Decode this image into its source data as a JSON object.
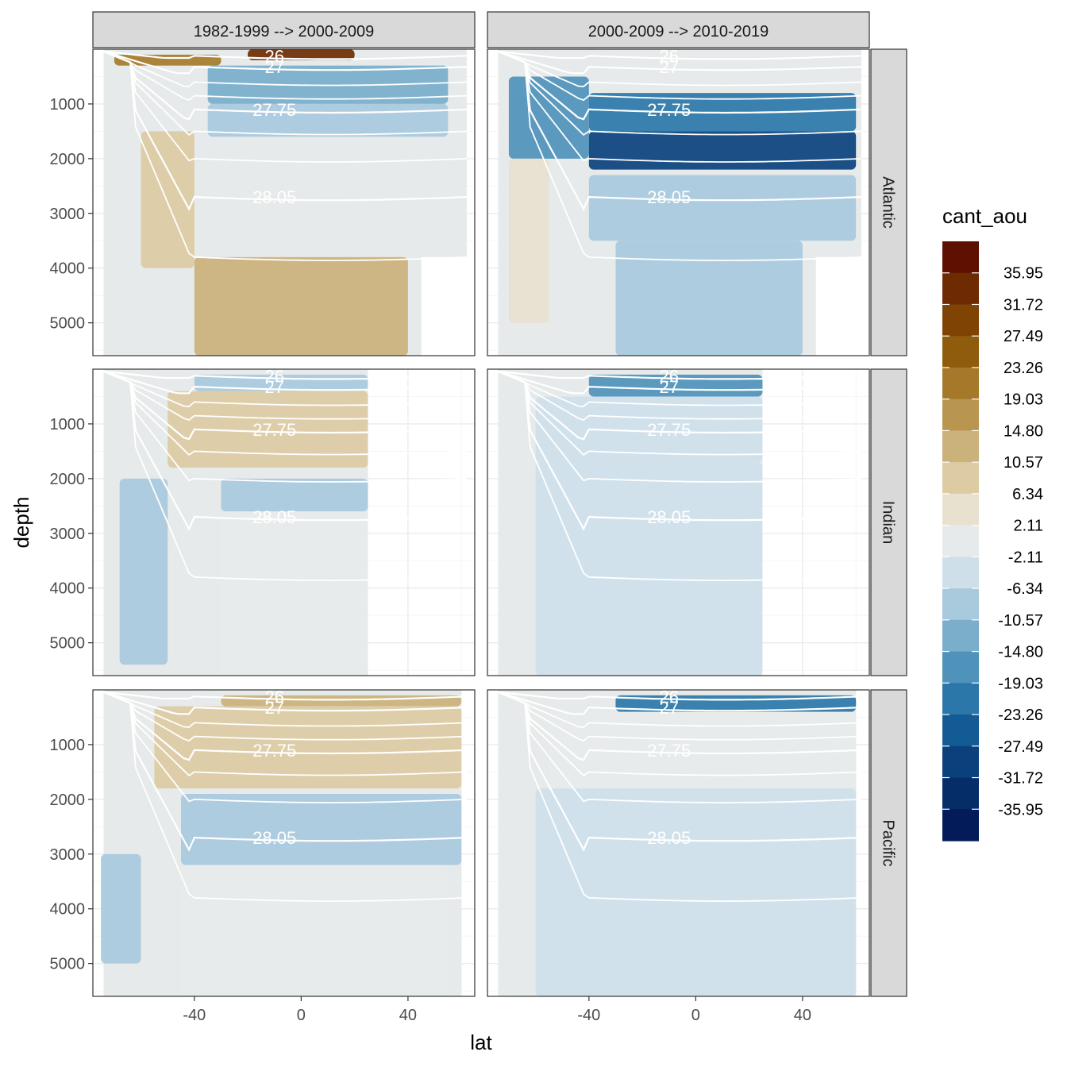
{
  "chart_data": {
    "type": "heatmap",
    "title": "",
    "xlabel": "lat",
    "ylabel": "depth",
    "xlim": [
      -78,
      65
    ],
    "ylim": [
      5600,
      0
    ],
    "x_ticks": [
      "-40",
      "0",
      "40"
    ],
    "y_ticks": [
      "1000",
      "2000",
      "3000",
      "4000",
      "5000"
    ],
    "column_facets": [
      "1982-1999 --> 2000-2009",
      "2000-2009 --> 2010-2019"
    ],
    "row_facets": [
      "Atlantic",
      "Indian",
      "Pacific"
    ],
    "legend": {
      "title": "cant_aou",
      "placement": "right",
      "labels": [
        "35.95",
        "31.72",
        "27.49",
        "23.26",
        "19.03",
        "14.80",
        "10.57",
        "6.34",
        "2.11",
        "-2.11",
        "-6.34",
        "-10.57",
        "-14.80",
        "-19.03",
        "-23.26",
        "-27.49",
        "-31.72",
        "-35.95"
      ],
      "colors": [
        "#5e1100",
        "#6e2b02",
        "#7f4304",
        "#8f5b0c",
        "#a6792a",
        "#b9964f",
        "#cbb17a",
        "#dccba3",
        "#e9e1cf",
        "#e7eaea",
        "#cfdfea",
        "#a9c9dd",
        "#7aaecb",
        "#4f93ba",
        "#2b77a9",
        "#135b94",
        "#0a417c",
        "#052d68",
        "#031b58"
      ]
    },
    "isopycnal_labels": [
      "26",
      "27",
      "27.75",
      "28.05"
    ],
    "panels": [
      {
        "basin": "Atlantic",
        "period": "1982-1999 --> 2000-2009",
        "land_lat_min": 45,
        "land_depth_min": 3800,
        "layers": [
          {
            "lat": [
              -70,
              -30
            ],
            "depth": [
              100,
              300
            ],
            "value": 22
          },
          {
            "lat": [
              -20,
              20
            ],
            "depth": [
              0,
              200
            ],
            "value": 33
          },
          {
            "lat": [
              -35,
              55
            ],
            "depth": [
              300,
              1000
            ],
            "value": -13
          },
          {
            "lat": [
              -35,
              55
            ],
            "depth": [
              1000,
              1600
            ],
            "value": -9
          },
          {
            "lat": [
              -60,
              -40
            ],
            "depth": [
              1500,
              4000
            ],
            "value": 10
          },
          {
            "lat": [
              -40,
              40
            ],
            "depth": [
              3800,
              5600
            ],
            "value": 13
          }
        ]
      },
      {
        "basin": "Atlantic",
        "period": "2000-2009 --> 2010-2019",
        "land_lat_min": 45,
        "land_depth_min": 3800,
        "layers": [
          {
            "lat": [
              -70,
              -40
            ],
            "depth": [
              500,
              2000
            ],
            "value": -15
          },
          {
            "lat": [
              -40,
              60
            ],
            "depth": [
              800,
              1500
            ],
            "value": -22
          },
          {
            "lat": [
              -40,
              60
            ],
            "depth": [
              1500,
              2200
            ],
            "value": -28
          },
          {
            "lat": [
              -70,
              -55
            ],
            "depth": [
              2000,
              5000
            ],
            "value": 4
          },
          {
            "lat": [
              -40,
              60
            ],
            "depth": [
              2300,
              3500
            ],
            "value": -8
          },
          {
            "lat": [
              -30,
              40
            ],
            "depth": [
              3500,
              5600
            ],
            "value": -8
          }
        ]
      },
      {
        "basin": "Indian",
        "period": "1982-1999 --> 2000-2009",
        "land_lat_min": 25,
        "land_depth_min": 0,
        "layers": [
          {
            "lat": [
              -40,
              25
            ],
            "depth": [
              100,
              400
            ],
            "value": -8
          },
          {
            "lat": [
              -50,
              25
            ],
            "depth": [
              400,
              1800
            ],
            "value": 9
          },
          {
            "lat": [
              -30,
              25
            ],
            "depth": [
              2000,
              2600
            ],
            "value": -9
          },
          {
            "lat": [
              -68,
              -50
            ],
            "depth": [
              2000,
              5400
            ],
            "value": -9
          },
          {
            "lat": [
              -30,
              25
            ],
            "depth": [
              2600,
              5600
            ],
            "value": 0
          }
        ]
      },
      {
        "basin": "Indian",
        "period": "2000-2009 --> 2010-2019",
        "land_lat_min": 25,
        "land_depth_min": 0,
        "layers": [
          {
            "lat": [
              -40,
              25
            ],
            "depth": [
              100,
              500
            ],
            "value": -16
          },
          {
            "lat": [
              -60,
              25
            ],
            "depth": [
              500,
              1700
            ],
            "value": -3
          },
          {
            "lat": [
              -60,
              25
            ],
            "depth": [
              1700,
              5600
            ],
            "value": -4
          }
        ]
      },
      {
        "basin": "Pacific",
        "period": "1982-1999 --> 2000-2009",
        "land_lat_min": 60,
        "land_depth_min": 0,
        "layers": [
          {
            "lat": [
              -30,
              60
            ],
            "depth": [
              100,
              300
            ],
            "value": 12
          },
          {
            "lat": [
              -55,
              60
            ],
            "depth": [
              300,
              1800
            ],
            "value": 10
          },
          {
            "lat": [
              -45,
              60
            ],
            "depth": [
              1900,
              3200
            ],
            "value": -8
          },
          {
            "lat": [
              -75,
              -60
            ],
            "depth": [
              3000,
              5000
            ],
            "value": -9
          },
          {
            "lat": [
              -45,
              55
            ],
            "depth": [
              3200,
              5600
            ],
            "value": 0
          }
        ]
      },
      {
        "basin": "Pacific",
        "period": "2000-2009 --> 2010-2019",
        "land_lat_min": 60,
        "land_depth_min": 0,
        "layers": [
          {
            "lat": [
              -30,
              60
            ],
            "depth": [
              100,
              400
            ],
            "value": -20
          },
          {
            "lat": [
              -55,
              60
            ],
            "depth": [
              400,
              1800
            ],
            "value": -1
          },
          {
            "lat": [
              -60,
              60
            ],
            "depth": [
              1800,
              5600
            ],
            "value": -4
          }
        ]
      }
    ]
  }
}
